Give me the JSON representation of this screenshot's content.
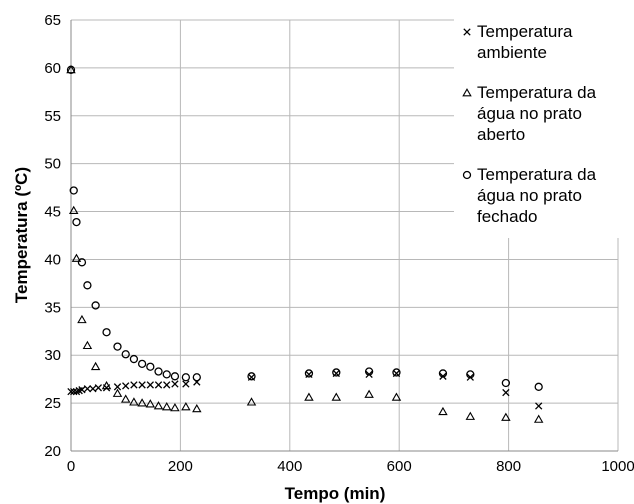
{
  "chart_data": {
    "type": "scatter",
    "xlabel": "Tempo (min)",
    "ylabel": "Temperatura (ºC)",
    "xlim": [
      0,
      1000
    ],
    "ylim": [
      20,
      65
    ],
    "xticks": [
      0,
      200,
      400,
      600,
      800,
      1000
    ],
    "yticks": [
      20,
      25,
      30,
      35,
      40,
      45,
      50,
      55,
      60,
      65
    ],
    "grid": true,
    "legend_position": "top-right",
    "series": [
      {
        "name": "Temperatura ambiente",
        "marker": "x",
        "color": "#000000",
        "x": [
          0,
          5,
          10,
          15,
          20,
          30,
          40,
          50,
          65,
          85,
          100,
          115,
          130,
          145,
          160,
          175,
          190,
          210,
          230,
          330,
          435,
          485,
          545,
          595,
          680,
          730,
          795,
          855
        ],
        "y": [
          26.2,
          26.2,
          26.2,
          26.3,
          26.4,
          26.5,
          26.5,
          26.6,
          26.6,
          26.7,
          26.8,
          26.9,
          26.9,
          26.9,
          26.9,
          26.9,
          27.0,
          27.0,
          27.2,
          27.7,
          28.0,
          28.1,
          28.0,
          28.1,
          27.8,
          27.7,
          26.1,
          24.7
        ]
      },
      {
        "name": "Temperatura da água no prato aberto",
        "marker": "triangle",
        "color": "#000000",
        "x": [
          0,
          5,
          10,
          20,
          30,
          45,
          65,
          85,
          100,
          115,
          130,
          145,
          160,
          175,
          190,
          210,
          230,
          330,
          435,
          485,
          545,
          595,
          680,
          730,
          795,
          855
        ],
        "y": [
          59.8,
          45.1,
          40.1,
          33.7,
          31.0,
          28.8,
          26.8,
          26.0,
          25.4,
          25.1,
          25.0,
          24.9,
          24.7,
          24.6,
          24.5,
          24.6,
          24.4,
          25.1,
          25.6,
          25.6,
          25.9,
          25.6,
          24.1,
          23.6,
          23.5,
          23.3
        ]
      },
      {
        "name": "Temperatura da água no prato fechado",
        "marker": "circle",
        "color": "#000000",
        "x": [
          0,
          5,
          10,
          20,
          30,
          45,
          65,
          85,
          100,
          115,
          130,
          145,
          160,
          175,
          190,
          210,
          230,
          330,
          435,
          485,
          545,
          595,
          680,
          730,
          795,
          855
        ],
        "y": [
          59.8,
          47.2,
          43.9,
          39.7,
          37.3,
          35.2,
          32.4,
          30.9,
          30.1,
          29.6,
          29.1,
          28.8,
          28.3,
          28.0,
          27.8,
          27.7,
          27.7,
          27.8,
          28.1,
          28.2,
          28.3,
          28.2,
          28.1,
          28.0,
          27.1,
          26.7
        ]
      }
    ],
    "legend": [
      [
        "Temperatura",
        "ambiente"
      ],
      [
        "Temperatura da",
        "água no prato",
        "aberto"
      ],
      [
        "Temperatura da",
        "água no prato",
        "fechado"
      ]
    ]
  }
}
